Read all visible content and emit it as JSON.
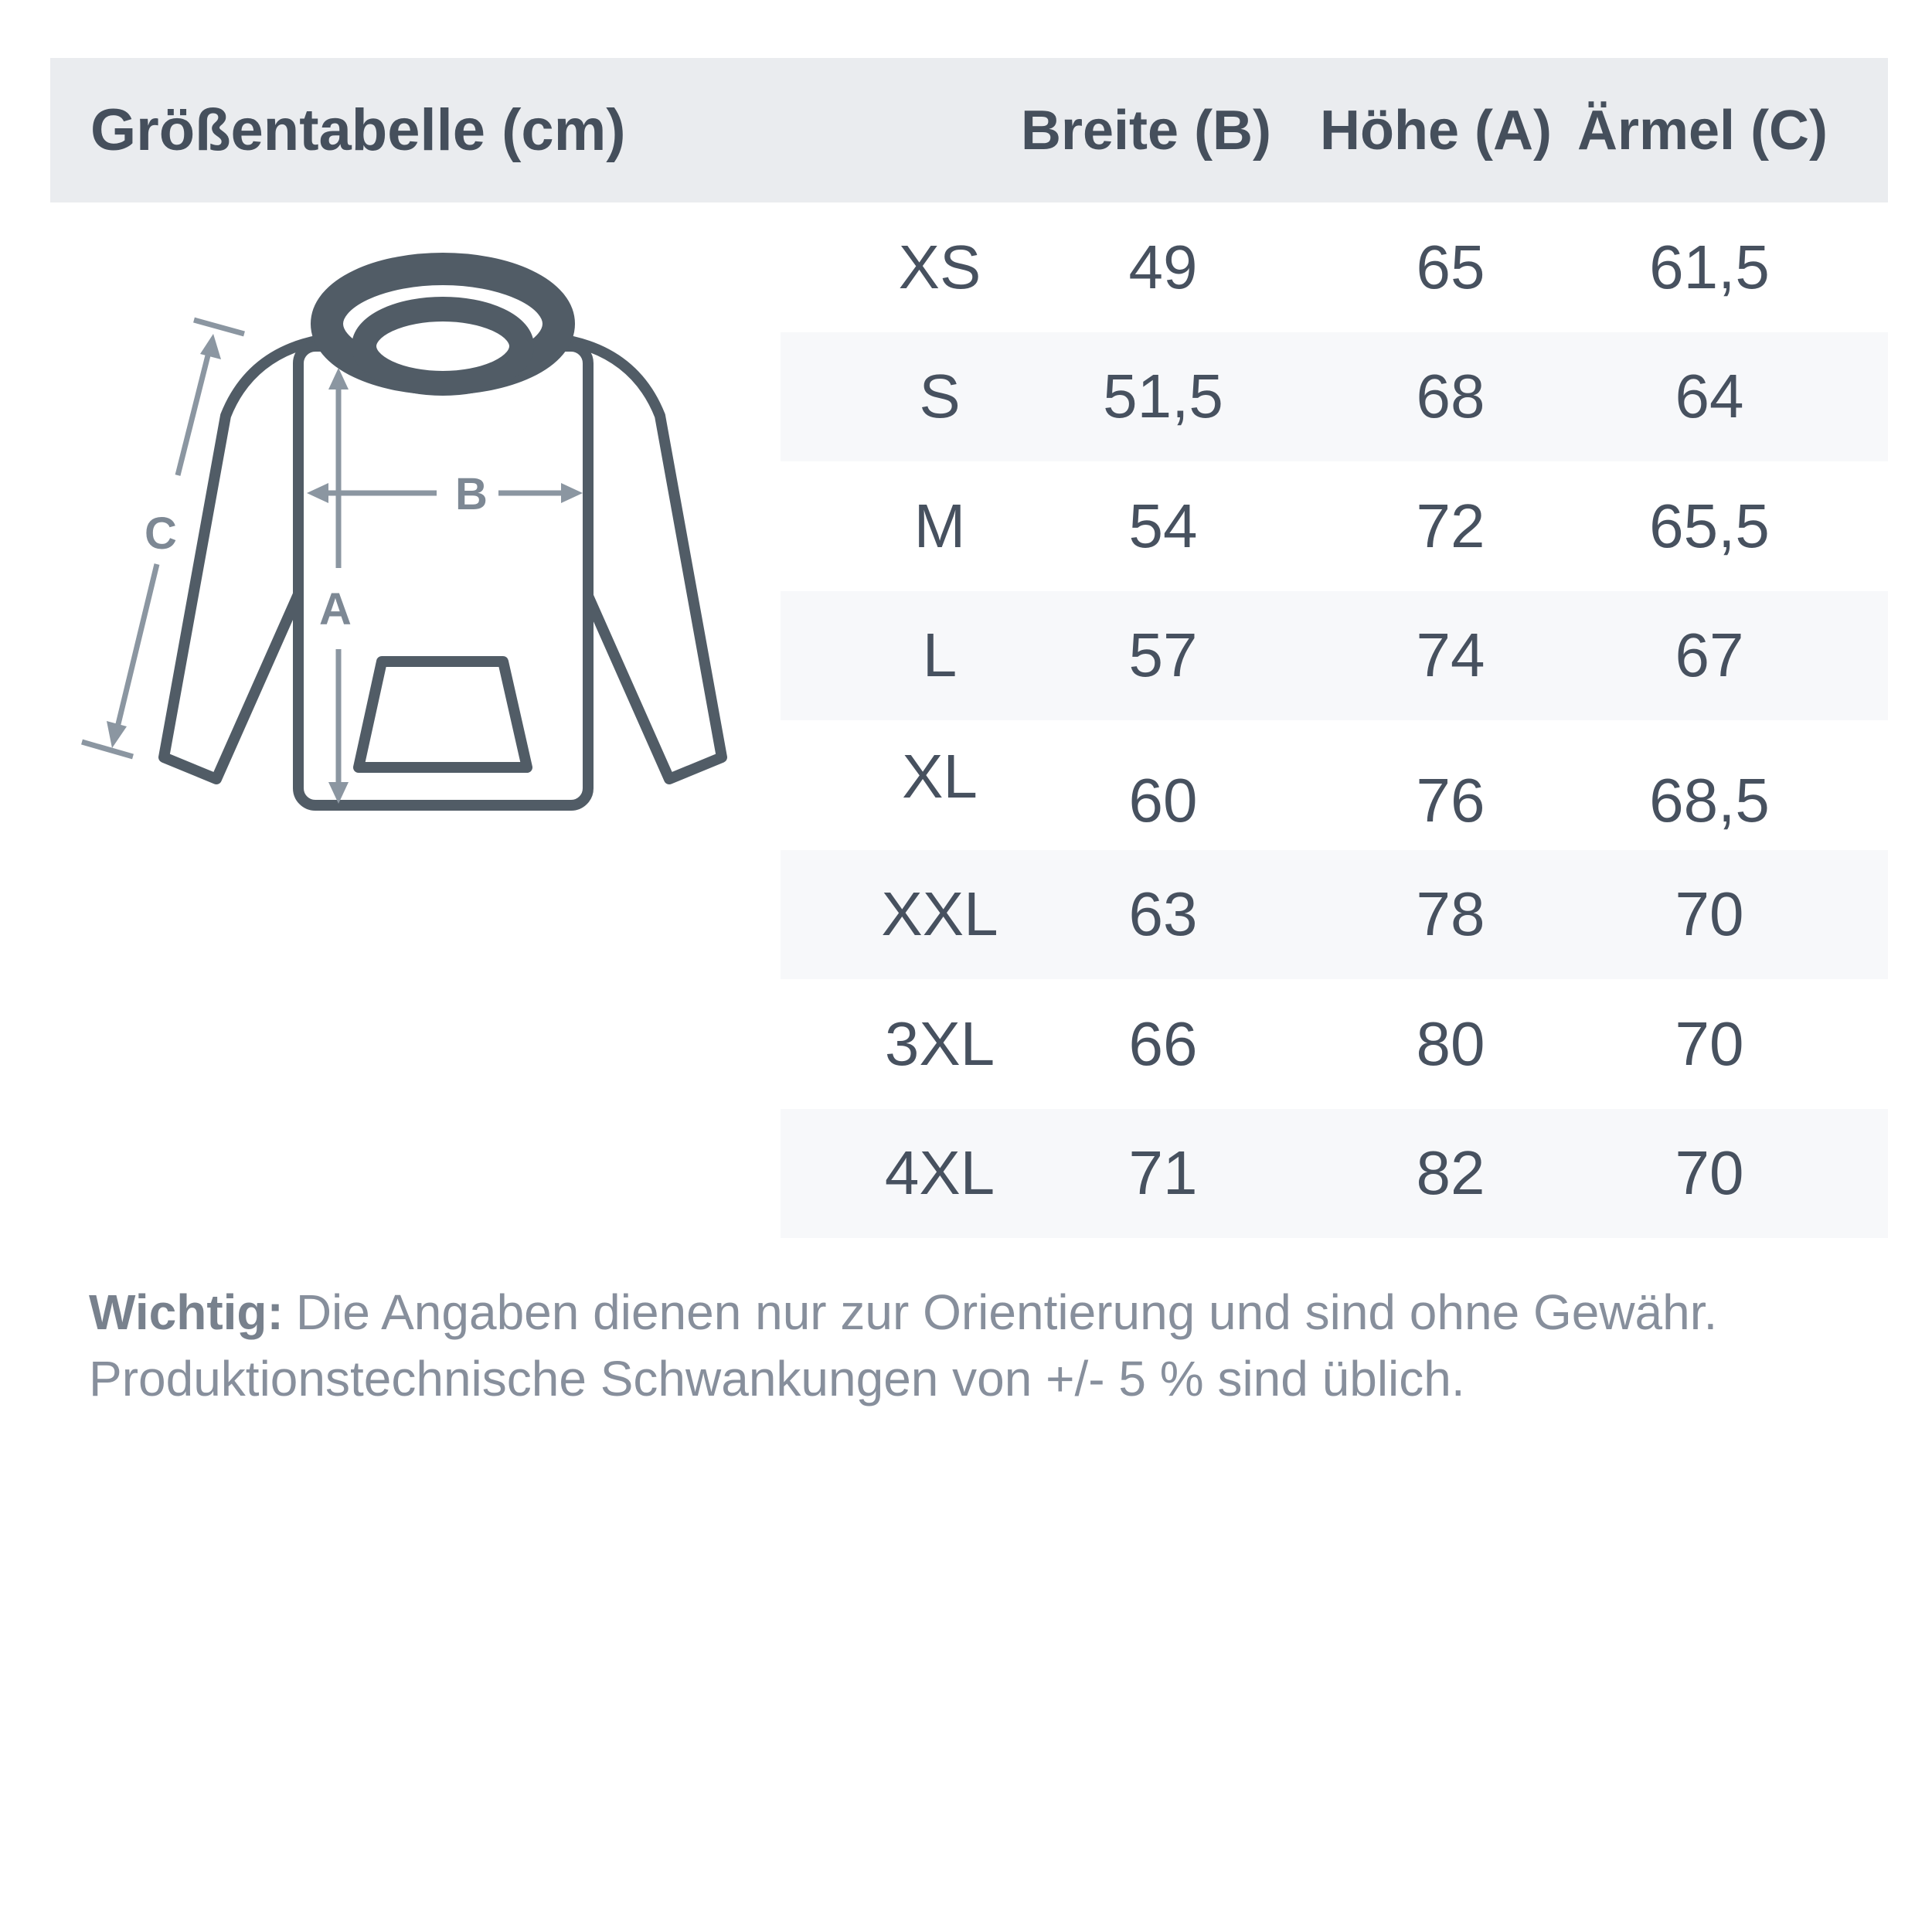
{
  "header": {
    "title": "Größentabelle (cm)",
    "columns": [
      "Breite (B)",
      "Höhe (A)",
      "Ärmel (C)"
    ]
  },
  "table": {
    "rows": [
      {
        "size": "XS",
        "breite": "49",
        "hoehe": "65",
        "aermel": "61,5"
      },
      {
        "size": "S",
        "breite": "51,5",
        "hoehe": "68",
        "aermel": "64"
      },
      {
        "size": "M",
        "breite": "54",
        "hoehe": "72",
        "aermel": "65,5"
      },
      {
        "size": "L",
        "breite": "57",
        "hoehe": "74",
        "aermel": "67"
      },
      {
        "size": "XL",
        "breite": "60",
        "hoehe": "76",
        "aermel": "68,5"
      },
      {
        "size": "XXL",
        "breite": "63",
        "hoehe": "78",
        "aermel": "70"
      },
      {
        "size": "3XL",
        "breite": "66",
        "hoehe": "80",
        "aermel": "70"
      },
      {
        "size": "4XL",
        "breite": "71",
        "hoehe": "82",
        "aermel": "70"
      }
    ]
  },
  "diagram": {
    "height_label": "A",
    "width_label": "B",
    "sleeve_label": "C"
  },
  "footer": {
    "emphasis": "Wichtig:",
    "line1": "Die Angaben dienen nur zur Orientierung und sind ohne Gewähr.",
    "line2": "Produktionstechnische Schwankungen von +/- 5 % sind üblich."
  },
  "colors": {
    "header_band": "#eaecef",
    "row_shade": "#f7f8fa",
    "text_dark": "#47515f",
    "footer_text": "#878f9c",
    "hoodie_outline": "#515c66",
    "arrow": "#8b96a1",
    "arrow_label": "#7d8894"
  }
}
